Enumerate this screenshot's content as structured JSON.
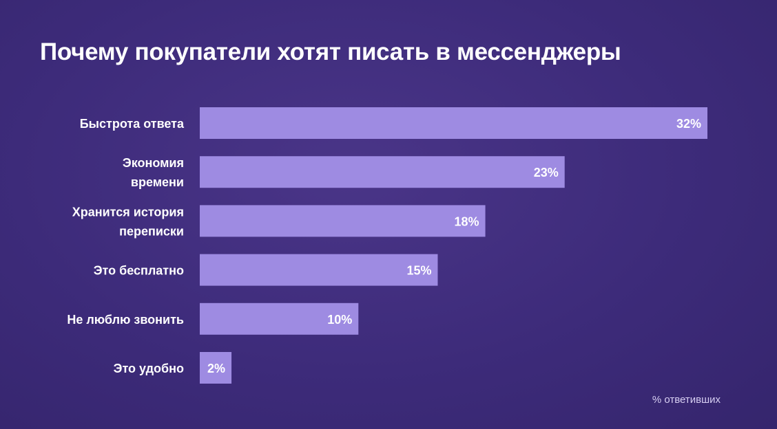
{
  "chart_data": {
    "type": "bar",
    "orientation": "horizontal",
    "title": "Почему покупатели хотят писать в мессенджеры",
    "categories": [
      [
        "Быстрота ответа"
      ],
      [
        "Экономия",
        "времени"
      ],
      [
        "Хранится история",
        "переписки"
      ],
      [
        "Это бесплатно"
      ],
      [
        "Не люблю звонить"
      ],
      [
        "Это удобно"
      ]
    ],
    "values": [
      32,
      23,
      18,
      15,
      10,
      2
    ],
    "value_labels": [
      "32%",
      "23%",
      "18%",
      "15%",
      "10%",
      "2%"
    ],
    "xlim": [
      0,
      32
    ],
    "unit_note": "% ответивших",
    "grid": false,
    "colors": {
      "background": "#3d2b7a",
      "bar": "#9e8be2",
      "text": "#ffffff"
    }
  }
}
